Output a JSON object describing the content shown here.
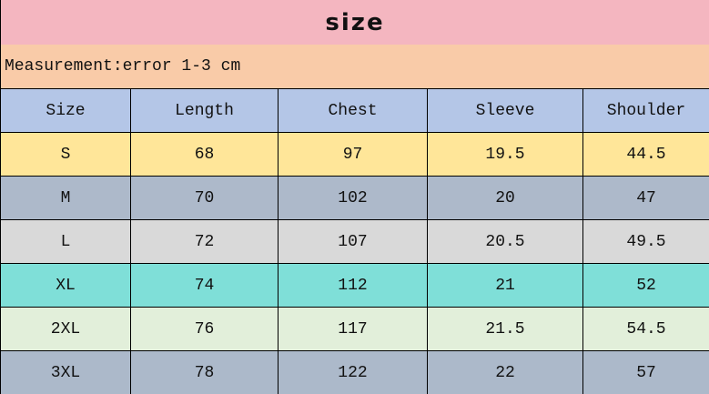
{
  "title": "size",
  "note": "Measurement:error 1-3 cm",
  "table": {
    "headers": [
      "Size",
      "Length",
      "Chest",
      "Sleeve",
      "Shoulder"
    ],
    "header_color": "#b4c6e7",
    "rows": [
      {
        "cells": [
          "S",
          "68",
          "97",
          "19.5",
          "44.5"
        ],
        "color": "#ffe699"
      },
      {
        "cells": [
          "M",
          "70",
          "102",
          "20",
          "47"
        ],
        "color": "#adb9ca"
      },
      {
        "cells": [
          "L",
          "72",
          "107",
          "20.5",
          "49.5"
        ],
        "color": "#d9d9d9"
      },
      {
        "cells": [
          "XL",
          "74",
          "112",
          "21",
          "52"
        ],
        "color": "#7fdfd8"
      },
      {
        "cells": [
          "2XL",
          "76",
          "117",
          "21.5",
          "54.5"
        ],
        "color": "#e2efda"
      },
      {
        "cells": [
          "3XL",
          "78",
          "122",
          "22",
          "57"
        ],
        "color": "#acb9ca"
      }
    ]
  },
  "colors": {
    "title_bg": "#f4b6c0",
    "note_bg": "#f9cba8"
  }
}
